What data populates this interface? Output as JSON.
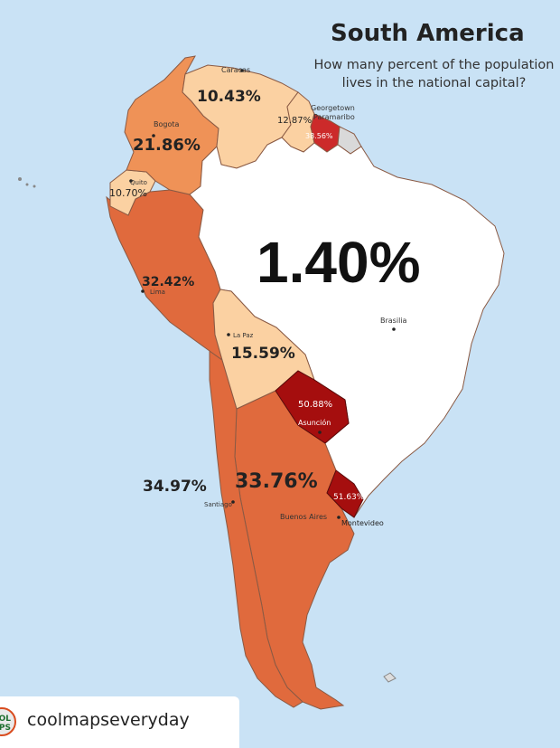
{
  "header": {
    "title": "South America",
    "subtitle": "How many percent of the population lives in the national capital?"
  },
  "countries": [
    {
      "key": "brazil",
      "value": "1.40%",
      "capital": "Brasilia",
      "color": "#ffffff"
    },
    {
      "key": "venezuela",
      "value": "10.43%",
      "capital": "Caracas",
      "color": "#fbd1a2"
    },
    {
      "key": "colombia",
      "value": "21.86%",
      "capital": "Bogota",
      "color": "#ef9257"
    },
    {
      "key": "ecuador",
      "value": "10.70%",
      "capital": "Quito",
      "color": "#fbd1a2"
    },
    {
      "key": "peru",
      "value": "32.42%",
      "capital": "Lima",
      "color": "#e06a3d"
    },
    {
      "key": "bolivia",
      "value": "15.59%",
      "capital": "La Paz",
      "color": "#fbd1a2"
    },
    {
      "key": "paraguay",
      "value": "50.88%",
      "capital": "Asunción",
      "color": "#a50e0e"
    },
    {
      "key": "chile",
      "value": "34.97%",
      "capital": "Santiago",
      "color": "#e06a3d"
    },
    {
      "key": "argentina",
      "value": "33.76%",
      "capital": "Buenos Aires",
      "color": "#e06a3d"
    },
    {
      "key": "uruguay",
      "value": "51.63%",
      "capital": "Montevideo",
      "color": "#a50e0e"
    },
    {
      "key": "guyana",
      "value": "12.87%",
      "capital": "Georgetown",
      "color": "#fbd1a2"
    },
    {
      "key": "suriname",
      "value": "38.56%",
      "capital": "Paramaribo",
      "color": "#cc2a2a"
    },
    {
      "key": "french-guiana",
      "value": "",
      "capital": "",
      "color": "#d9d9d9"
    }
  ],
  "colors": {
    "ocean": "#c9e2f5",
    "border": "#8a5a44"
  },
  "footer": {
    "logo_text": "OL PS",
    "handle": "coolmapseveryday"
  }
}
